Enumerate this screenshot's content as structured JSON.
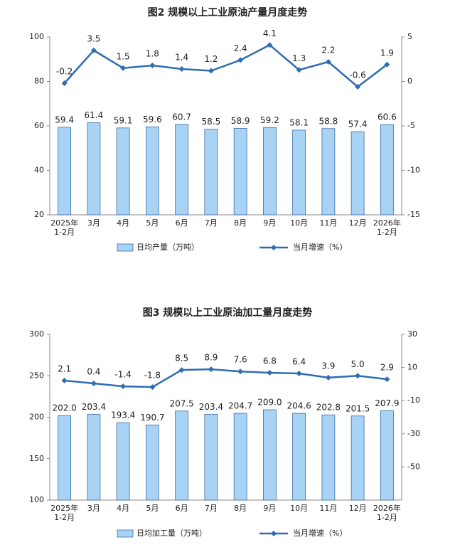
{
  "chart_data": [
    {
      "type": "bar-line",
      "title": "图2 规模以上工业原油产量月度走势",
      "categories": [
        "2025年\n1-2月",
        "3月",
        "4月",
        "5月",
        "6月",
        "7月",
        "8月",
        "9月",
        "10月",
        "11月",
        "12月",
        "2026年\n1-2月"
      ],
      "series": [
        {
          "name": "日均产量（万吨）",
          "type": "bar",
          "color": "#a9d3f5",
          "values": [
            59.4,
            61.4,
            59.1,
            59.6,
            60.7,
            58.5,
            58.9,
            59.2,
            58.1,
            58.8,
            57.4,
            60.6
          ],
          "value_labels": [
            "59.4",
            "61.4",
            "59.1",
            "59.6",
            "60.7",
            "58.5",
            "58.9",
            "59.2",
            "58.1",
            "58.8",
            "57.4",
            "60.6"
          ]
        },
        {
          "name": "当月增速（%）",
          "type": "line",
          "axis": "y2",
          "color": "#2e6db4",
          "values": [
            -0.2,
            3.5,
            1.5,
            1.8,
            1.4,
            1.2,
            2.4,
            4.1,
            1.3,
            2.2,
            -0.6,
            1.9
          ],
          "value_labels": [
            "-0.2",
            "3.5",
            "1.5",
            "1.8",
            "1.4",
            "1.2",
            "2.4",
            "4.1",
            "1.3",
            "2.2",
            "-0.6",
            "1.9"
          ]
        }
      ],
      "ylim": [
        20,
        100
      ],
      "yticks": [
        20,
        40,
        60,
        80,
        100
      ],
      "y2lim": [
        -15,
        5
      ],
      "y2ticks": [
        -15,
        -10,
        -5,
        0,
        5
      ]
    },
    {
      "type": "bar-line",
      "title": "图3 规模以上工业原油加工量月度走势",
      "categories": [
        "2025年\n1-2月",
        "3月",
        "4月",
        "5月",
        "6月",
        "7月",
        "8月",
        "9月",
        "10月",
        "11月",
        "12月",
        "2026年\n1-2月"
      ],
      "series": [
        {
          "name": "日均加工量（万吨）",
          "type": "bar",
          "color": "#a9d3f5",
          "values": [
            202.0,
            203.4,
            193.4,
            190.7,
            207.5,
            203.4,
            204.7,
            209.0,
            204.6,
            202.8,
            201.5,
            207.9
          ],
          "value_labels": [
            "202.0",
            "203.4",
            "193.4",
            "190.7",
            "207.5",
            "203.4",
            "204.7",
            "209.0",
            "204.6",
            "202.8",
            "201.5",
            "207.9"
          ]
        },
        {
          "name": "当月增速（%）",
          "type": "line",
          "axis": "y2",
          "color": "#2e6db4",
          "values": [
            2.1,
            0.4,
            -1.4,
            -1.8,
            8.5,
            8.9,
            7.6,
            6.8,
            6.4,
            3.9,
            5.0,
            2.9
          ],
          "value_labels": [
            "2.1",
            "0.4",
            "-1.4",
            "-1.8",
            "8.5",
            "8.9",
            "7.6",
            "6.8",
            "6.4",
            "3.9",
            "5.0",
            "2.9"
          ]
        }
      ],
      "ylim": [
        100,
        300
      ],
      "yticks": [
        100,
        150,
        200,
        250,
        300
      ],
      "y2lim": [
        -70,
        30
      ],
      "y2ticks": [
        -50,
        -30,
        -10,
        10,
        30
      ]
    }
  ]
}
